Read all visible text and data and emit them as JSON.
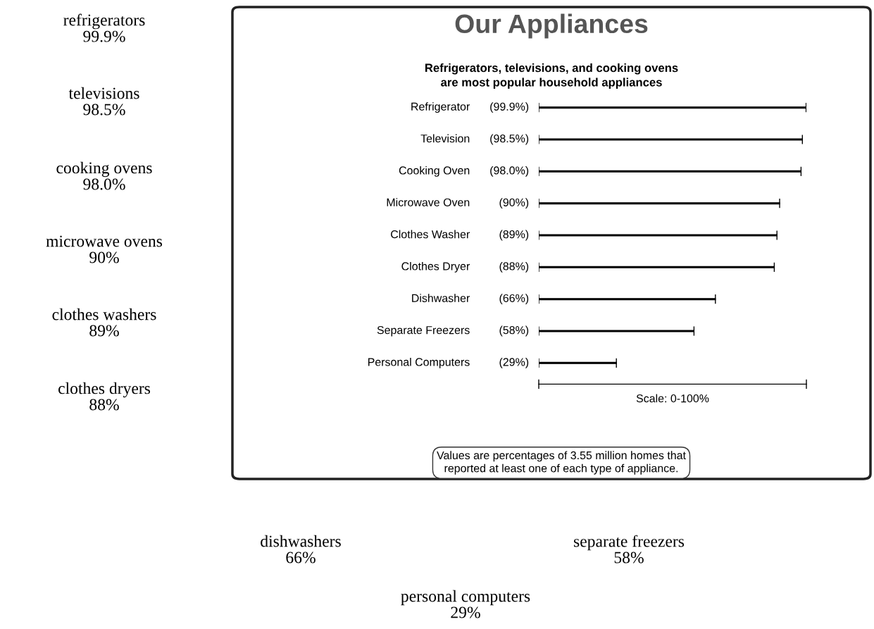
{
  "chart_data": {
    "type": "bar",
    "orientation": "horizontal",
    "title": "Our Appliances",
    "subtitle": "Refrigerators, televisions, and cooking ovens\nare most popular household appliances",
    "categories": [
      "Refrigerator",
      "Television",
      "Cooking Oven",
      "Microwave Oven",
      "Clothes Washer",
      "Clothes Dryer",
      "Dishwasher",
      "Separate Freezers",
      "Personal Computers"
    ],
    "values": [
      99.9,
      98.5,
      98.0,
      90,
      89,
      88,
      66,
      58,
      29
    ],
    "value_labels": [
      "(99.9%)",
      "(98.5%)",
      "(98.0%)",
      "(90%)",
      "(89%)",
      "(88%)",
      "(66%)",
      "(58%)",
      "(29%)"
    ],
    "color": "#000000",
    "xlim": [
      0,
      100
    ],
    "tick_labels": "y",
    "grid": false,
    "annotations": [
      "Scale: 0-100%",
      "Values are percentages of 3.55 million homes that\nreported at least one of each type of appliance.",
      "refrigerators\n99.9%",
      "televisions\n98.5%",
      "cooking ovens\n98.0%",
      "microwave ovens\n90%",
      "clothes washers\n89%",
      "clothes dryers\n88%",
      "dishwashers\n66%",
      "separate freezers\n58%",
      "personal computers\n29%"
    ]
  }
}
